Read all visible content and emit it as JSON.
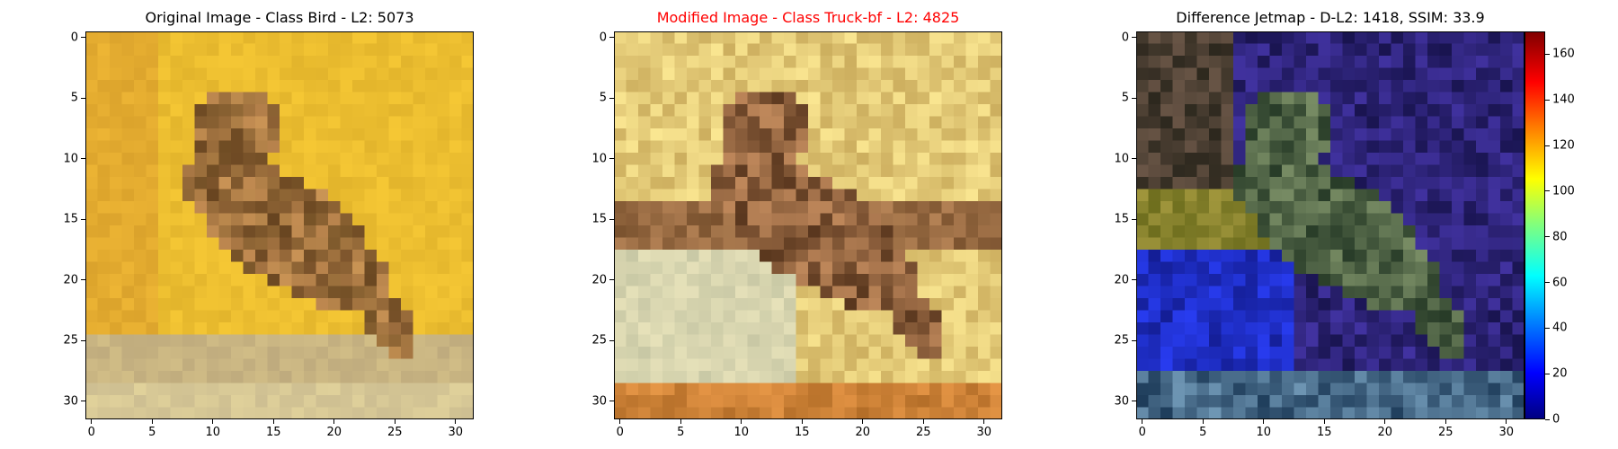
{
  "panels": [
    {
      "title": "Original Image - Class Bird - L2: 5073",
      "title_color": "#000000",
      "palette": "original"
    },
    {
      "title": "Modified Image - Class Truck-bf - L2: 4825",
      "title_color": "#ff0000",
      "palette": "modified"
    },
    {
      "title": "Difference Jetmap - D-L2: 1418, SSIM: 33.9",
      "title_color": "#000000",
      "palette": "difference"
    }
  ],
  "axis_ticks": {
    "x": [
      "0",
      "5",
      "10",
      "15",
      "20",
      "25",
      "30"
    ],
    "y": [
      "0",
      "5",
      "10",
      "15",
      "20",
      "25",
      "30"
    ]
  },
  "colorbar": {
    "ticks": [
      "0",
      "20",
      "40",
      "60",
      "80",
      "100",
      "120",
      "140",
      "160"
    ]
  }
}
